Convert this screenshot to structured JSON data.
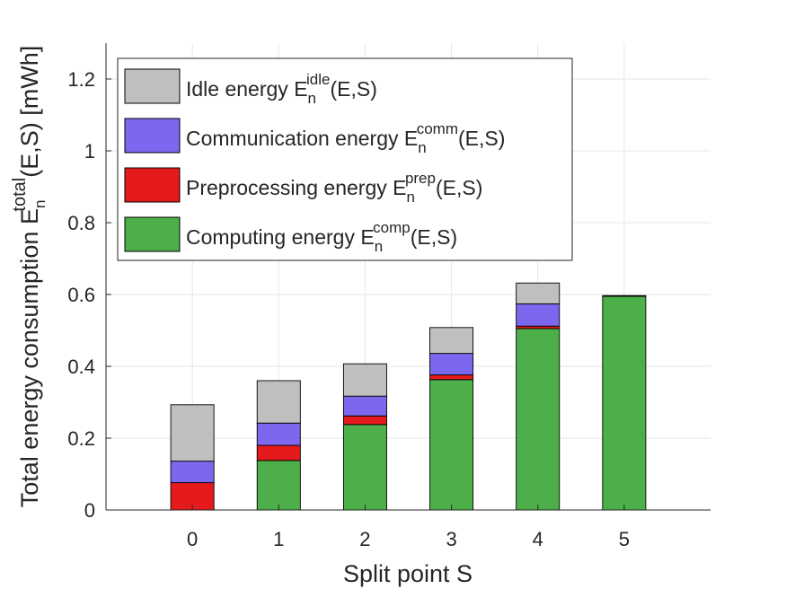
{
  "chart_data": {
    "type": "bar",
    "stacked": true,
    "title": "",
    "xlabel": "Split point S",
    "ylabel": {
      "base": "Total energy consumption E",
      "sub": "n",
      "sup": "total",
      "tail": "(E,S) [mWh]"
    },
    "categories": [
      "0",
      "1",
      "2",
      "3",
      "4",
      "5"
    ],
    "ylim": [
      0,
      1.3
    ],
    "yticks": [
      "0",
      "0.2",
      "0.4",
      "0.6",
      "0.8",
      "1",
      "1.2"
    ],
    "ytick_values": [
      0,
      0.2,
      0.4,
      0.6,
      0.8,
      1.0,
      1.2
    ],
    "grid": true,
    "legend_position": "top-left",
    "series": [
      {
        "name": "Computing energy",
        "sup": "comp",
        "sub": "n",
        "tail": "(E,S)",
        "color": "#4daf4a",
        "values": [
          0.0,
          0.138,
          0.238,
          0.363,
          0.505,
          0.595
        ]
      },
      {
        "name": "Preprocessing energy",
        "sup": "prep",
        "sub": "n",
        "tail": "(E,S)",
        "color": "#e41a1c",
        "values": [
          0.076,
          0.042,
          0.024,
          0.013,
          0.007,
          0.0
        ]
      },
      {
        "name": "Communication energy",
        "sup": "comm",
        "sub": "n",
        "tail": "(E,S)",
        "color": "#7b68ee",
        "values": [
          0.06,
          0.062,
          0.055,
          0.06,
          0.062,
          0.002
        ]
      },
      {
        "name": "Idle energy",
        "sup": "idle",
        "sub": "n",
        "tail": "(E,S)",
        "color": "#bfbfbf",
        "values": [
          0.157,
          0.118,
          0.09,
          0.072,
          0.058,
          0.0
        ]
      }
    ]
  }
}
